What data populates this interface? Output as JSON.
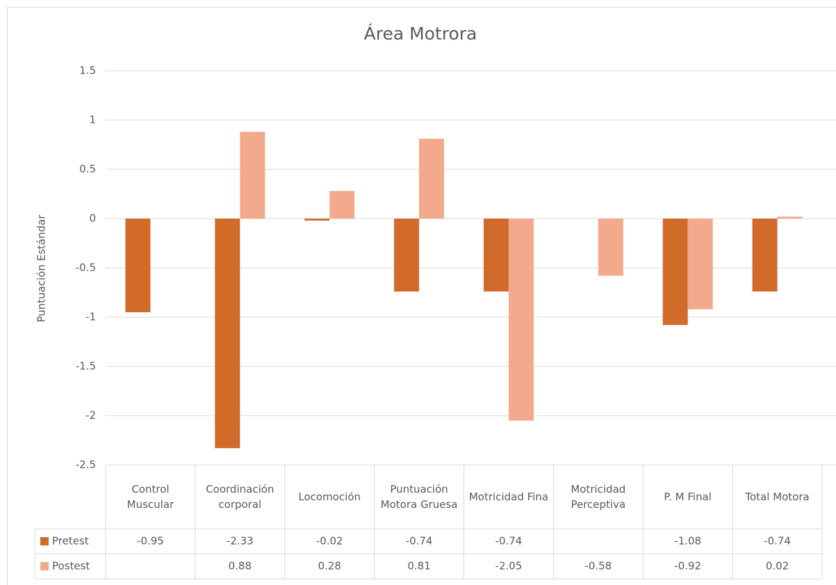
{
  "chart_data": {
    "type": "bar",
    "title": "Área Motrora",
    "y_label": "Puntuación Estándar",
    "categories": [
      "Control Muscular",
      "Coordinación corporal",
      "Locomoción",
      "Puntuación Motora Gruesa",
      "Motricidad Fina",
      "Motricidad Perceptiva",
      "P. M Final",
      "Total Motora"
    ],
    "series": [
      {
        "name": "Pretest",
        "color": "#d26a2a",
        "values": [
          -0.95,
          -2.33,
          -0.02,
          -0.74,
          -0.74,
          null,
          -1.08,
          -0.74
        ]
      },
      {
        "name": "Postest",
        "color": "#f3a98b",
        "values": [
          null,
          0.88,
          0.28,
          0.81,
          -2.05,
          -0.58,
          -0.92,
          0.02
        ]
      }
    ],
    "ylim": [
      -2.5,
      1.5
    ],
    "yticks": [
      1.5,
      1,
      0.5,
      0,
      -0.5,
      -1,
      -1.5,
      -2,
      -2.5
    ],
    "grid": true,
    "data_table": true
  }
}
